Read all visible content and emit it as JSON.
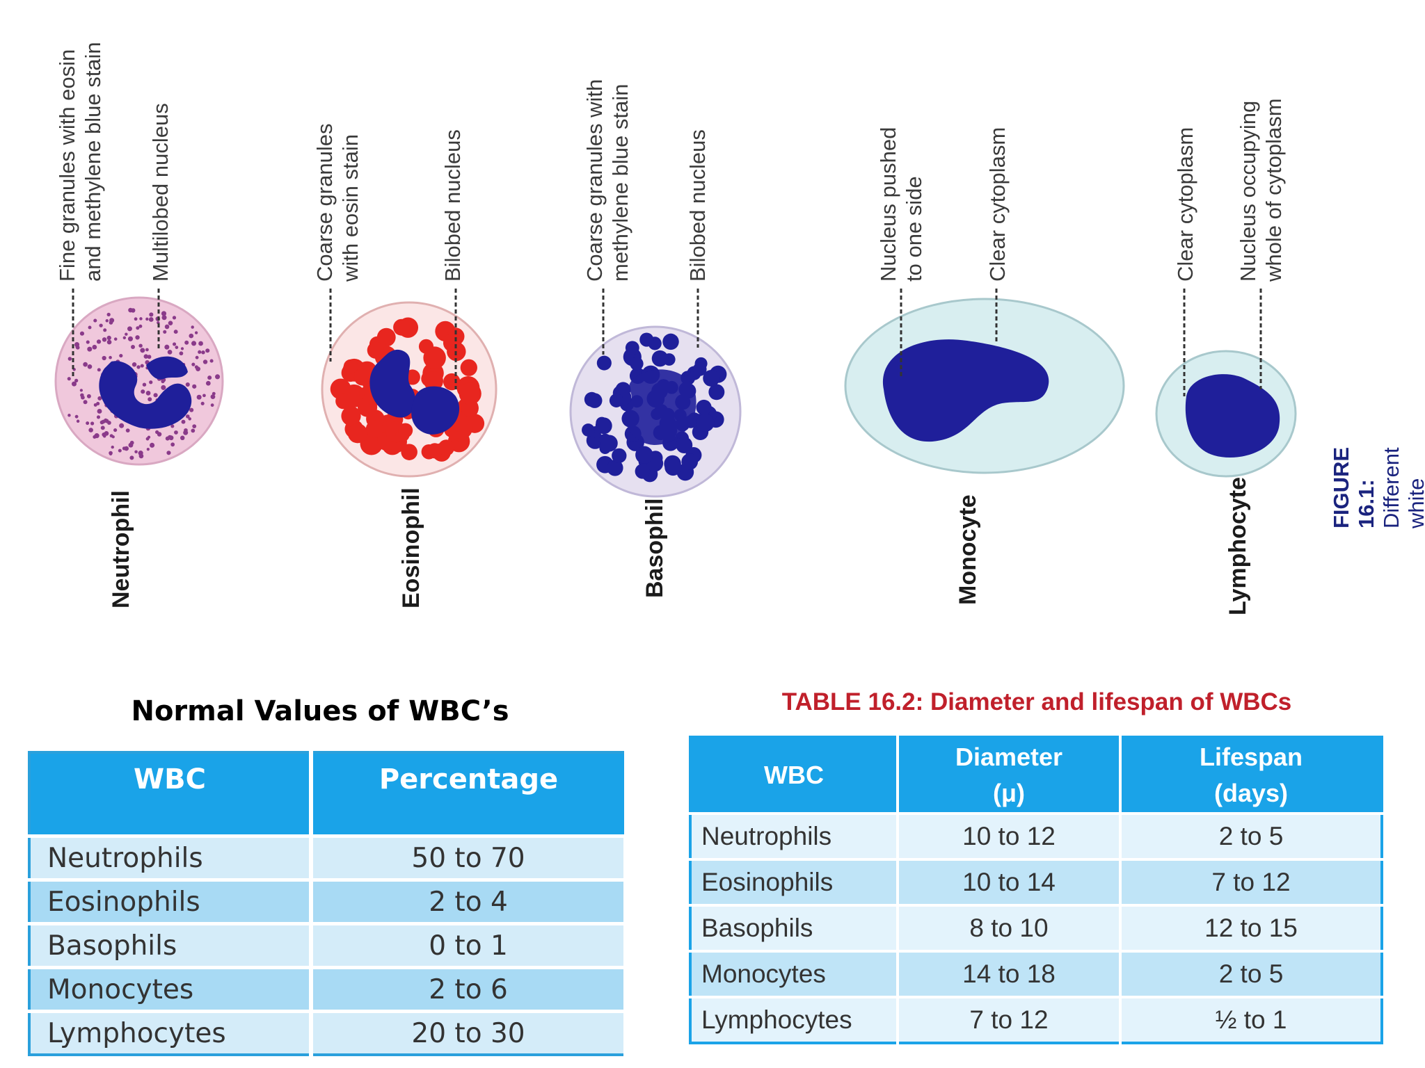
{
  "figure": {
    "cells": [
      {
        "name": "Neutrophil",
        "callouts": [
          "Fine granules with eosin\nand methylene blue stain",
          "Multilobed nucleus"
        ]
      },
      {
        "name": "Eosinophil",
        "callouts": [
          "Coarse granules\nwith eosin stain",
          "Bilobed nucleus"
        ]
      },
      {
        "name": "Basophil",
        "callouts": [
          "Coarse granules with\nmethylene blue stain",
          "Bilobed nucleus"
        ]
      },
      {
        "name": "Monocyte",
        "callouts": [
          "Nucleus pushed\nto one side",
          "Clear cytoplasm"
        ]
      },
      {
        "name": "Lymphocyte",
        "callouts": [
          "Clear cytoplasm",
          "Nucleus occupying\nwhole of cytoplasm"
        ]
      }
    ],
    "caption_label": "FIGURE 16.1:",
    "caption_text": " Different white blood cells"
  },
  "table1": {
    "title": "Normal Values of WBC’s",
    "headers": [
      "WBC",
      "Percentage"
    ],
    "rows": [
      [
        "Neutrophils",
        "50 to 70"
      ],
      [
        "Eosinophils",
        "2 to 4"
      ],
      [
        "Basophils",
        "0 to 1"
      ],
      [
        "Monocytes",
        "2 to 6"
      ],
      [
        "Lymphocytes",
        "20 to 30"
      ]
    ]
  },
  "table2": {
    "title": "TABLE 16.2: Diameter and lifespan of WBCs",
    "headers": [
      "WBC",
      "Diameter\n(μ)",
      "Lifespan\n(days)"
    ],
    "rows": [
      [
        "Neutrophils",
        "10 to 12",
        "2 to  5"
      ],
      [
        "Eosinophils",
        "10 to 14",
        "7 to 12"
      ],
      [
        "Basophils",
        "8 to 10",
        "12 to 15"
      ],
      [
        "Monocytes",
        "14 to 18",
        "2 to  5"
      ],
      [
        "Lymphocytes",
        "7 to 12",
        "½ to  1"
      ]
    ]
  },
  "colors": {
    "header_blue": "#1aa3e8",
    "nucleus": "#1f1f9a",
    "eosin_red": "#e8261f",
    "neutrophil_cytoplasm": "#f0c8dc",
    "clear_cytoplasm": "#d8eef0",
    "table2_title": "#c0202b",
    "caption": "#1a237e"
  }
}
